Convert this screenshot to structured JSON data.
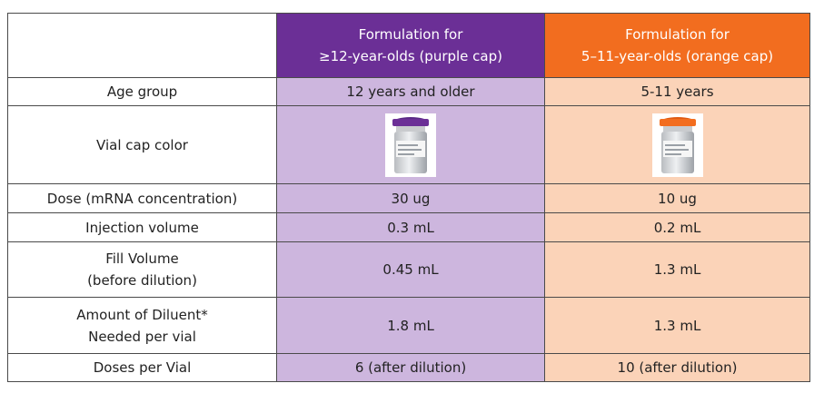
{
  "colors": {
    "purple": "#6b2f96",
    "orange": "#f26d1f"
  },
  "header": {
    "purple": {
      "line1": "Formulation for",
      "line2": "≥12-year-olds (purple cap)"
    },
    "orange": {
      "line1": "Formulation for",
      "line2": "5–11-year-olds (orange cap)"
    }
  },
  "rows": {
    "age": {
      "label": "Age group",
      "purple": "12 years and older",
      "orange": "5-11 years"
    },
    "cap": {
      "label": "Vial cap color",
      "purple_icon": "purple-cap-vial",
      "orange_icon": "orange-cap-vial"
    },
    "dose": {
      "label": "Dose (mRNA concentration)",
      "purple": "30 ug",
      "orange": "10 ug"
    },
    "injection": {
      "label": "Injection volume",
      "purple": "0.3 mL",
      "orange": "0.2 mL"
    },
    "fill": {
      "label_line1": "Fill Volume",
      "label_line2": "(before dilution)",
      "purple": "0.45 mL",
      "orange": "1.3 mL"
    },
    "diluent": {
      "label_line1": "Amount of Diluent*",
      "label_line2": "Needed per vial",
      "purple": "1.8 mL",
      "orange": "1.3 mL"
    },
    "doses": {
      "label": "Doses per Vial",
      "purple": "6 (after dilution)",
      "orange": "10 (after dilution)"
    }
  }
}
